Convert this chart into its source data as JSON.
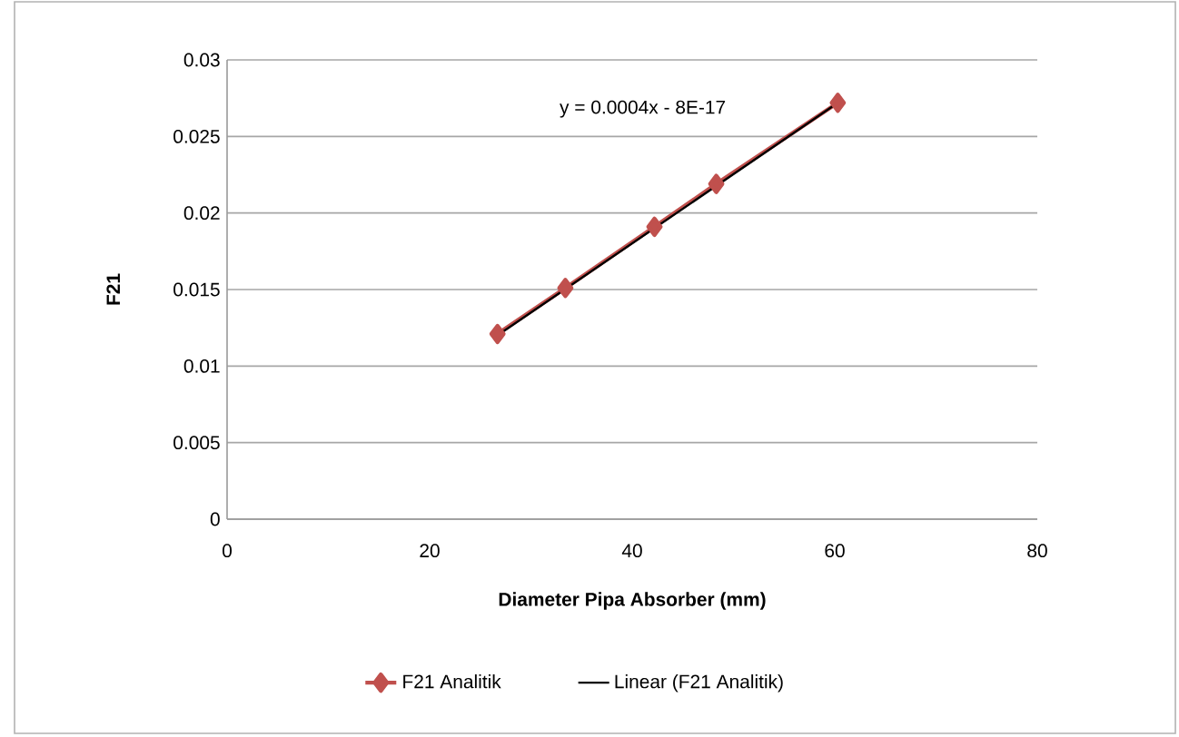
{
  "chart_data": {
    "type": "line",
    "xlabel": "Diameter Pipa Absorber (mm)",
    "ylabel": "F21",
    "xlim": [
      0,
      80
    ],
    "xticks": [
      0,
      20,
      40,
      60,
      80
    ],
    "ylim": [
      0,
      0.03
    ],
    "yticks": [
      0,
      0.005,
      0.01,
      0.015,
      0.02,
      0.025,
      0.03
    ],
    "grid": "y",
    "legend": "bottom",
    "annotations": [
      "y = 0.0004x - 8E-17"
    ],
    "series": [
      {
        "name": "F21 Analitik",
        "color": "#c0504d",
        "marker": "diamond",
        "x": [
          26.7,
          33.4,
          42.2,
          48.3,
          60.3
        ],
        "values": [
          0.0121,
          0.0151,
          0.0191,
          0.0219,
          0.0272
        ]
      },
      {
        "name": "Linear (F21 Analitik)",
        "color": "#000000",
        "marker": "none",
        "x": [
          26.7,
          60.3
        ],
        "values": [
          0.012,
          0.0272
        ]
      }
    ]
  }
}
